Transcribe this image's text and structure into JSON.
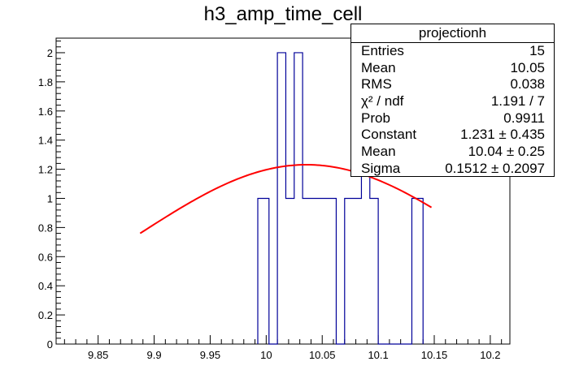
{
  "title": "h3_amp_time_cell",
  "stats": {
    "name": "projectionh",
    "rows": [
      {
        "label": "Entries",
        "value": "15"
      },
      {
        "label": "Mean",
        "value": "10.05"
      },
      {
        "label": "RMS",
        "value": "0.038"
      },
      {
        "label": "χ² / ndf",
        "value": "1.191 / 7"
      },
      {
        "label": "Prob",
        "value": "0.9911"
      },
      {
        "label": "Constant",
        "value": "1.231 ± 0.435"
      },
      {
        "label": "Mean",
        "value": "10.04 ± 0.25"
      },
      {
        "label": "Sigma",
        "value": "0.1512 ± 0.2097"
      }
    ]
  },
  "colors": {
    "histogram": "#000099",
    "fit": "#ff0000",
    "axis": "#000000"
  },
  "chart_data": {
    "type": "histogram",
    "title": "h3_amp_time_cell",
    "xlabel": "",
    "ylabel": "",
    "xlim": [
      9.8125,
      10.2175
    ],
    "ylim": [
      0,
      2.1
    ],
    "xticks": [
      "9.85",
      "9.9",
      "9.95",
      "10",
      "10.05",
      "10.1",
      "10.15",
      "10.2"
    ],
    "yticks": [
      "0",
      "0.2",
      "0.4",
      "0.6",
      "0.8",
      "1",
      "1.2",
      "1.4",
      "1.6",
      "1.8",
      "2"
    ],
    "bins": [
      {
        "x0": 9.9925,
        "x1": 10.0025,
        "y": 1
      },
      {
        "x0": 10.0025,
        "x1": 10.01,
        "y": 0
      },
      {
        "x0": 10.01,
        "x1": 10.0175,
        "y": 2
      },
      {
        "x0": 10.0175,
        "x1": 10.025,
        "y": 1
      },
      {
        "x0": 10.025,
        "x1": 10.0325,
        "y": 2
      },
      {
        "x0": 10.0325,
        "x1": 10.0625,
        "y": 1
      },
      {
        "x0": 10.0625,
        "x1": 10.07,
        "y": 0
      },
      {
        "x0": 10.07,
        "x1": 10.0775,
        "y": 1
      },
      {
        "x0": 10.0775,
        "x1": 10.085,
        "y": 1
      },
      {
        "x0": 10.085,
        "x1": 10.0925,
        "y": 2
      },
      {
        "x0": 10.0925,
        "x1": 10.1,
        "y": 1
      },
      {
        "x0": 10.1,
        "x1": 10.13,
        "y": 0
      },
      {
        "x0": 10.13,
        "x1": 10.14,
        "y": 1
      }
    ],
    "fit": {
      "function": "gaus",
      "constant": 1.231,
      "mean": 10.036,
      "sigma": 0.1512,
      "xrange": [
        9.8875,
        10.1475
      ]
    }
  }
}
